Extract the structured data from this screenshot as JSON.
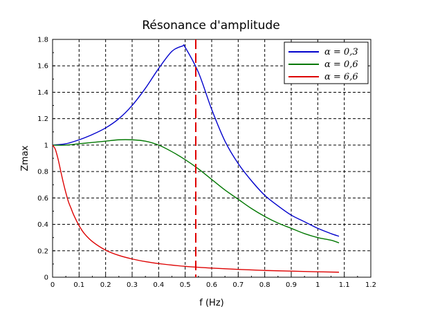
{
  "chart_data": {
    "type": "line",
    "title": "Résonance d'amplitude",
    "xlabel": "f (Hz)",
    "ylabel": "Zmax",
    "xlim": [
      0,
      1.2
    ],
    "ylim": [
      0,
      1.8
    ],
    "x_ticks": [
      "0",
      "0.1",
      "0.2",
      "0.3",
      "0.4",
      "0.5",
      "0.6",
      "0.7",
      "0.8",
      "0.9",
      "1",
      "1.1",
      "1.2"
    ],
    "y_ticks": [
      "0",
      "0.2",
      "0.4",
      "0.6",
      "0.8",
      "1",
      "1.2",
      "1.4",
      "1.6",
      "1.8"
    ],
    "grid": true,
    "legend_position": "top-right",
    "vertical_marker": {
      "x": 0.54,
      "color": "#e00000",
      "style": "dashed"
    },
    "series": [
      {
        "name": "α = 0,3",
        "color": "#0000cc",
        "x": [
          0,
          0.05,
          0.1,
          0.15,
          0.2,
          0.25,
          0.3,
          0.35,
          0.4,
          0.45,
          0.49,
          0.5,
          0.55,
          0.6,
          0.65,
          0.7,
          0.75,
          0.8,
          0.85,
          0.9,
          0.95,
          1.0,
          1.05,
          1.08
        ],
        "y": [
          1.0,
          1.01,
          1.04,
          1.08,
          1.13,
          1.2,
          1.3,
          1.43,
          1.58,
          1.71,
          1.75,
          1.74,
          1.55,
          1.27,
          1.03,
          0.86,
          0.73,
          0.62,
          0.54,
          0.47,
          0.42,
          0.37,
          0.33,
          0.31
        ]
      },
      {
        "name": "α = 0,6",
        "color": "#007700",
        "x": [
          0,
          0.05,
          0.1,
          0.15,
          0.2,
          0.25,
          0.3,
          0.35,
          0.4,
          0.45,
          0.5,
          0.55,
          0.6,
          0.65,
          0.7,
          0.75,
          0.8,
          0.85,
          0.9,
          0.95,
          1.0,
          1.05,
          1.08
        ],
        "y": [
          1.0,
          1.0,
          1.01,
          1.02,
          1.03,
          1.04,
          1.04,
          1.03,
          1.0,
          0.95,
          0.89,
          0.82,
          0.74,
          0.66,
          0.59,
          0.52,
          0.46,
          0.41,
          0.37,
          0.33,
          0.3,
          0.28,
          0.26
        ]
      },
      {
        "name": "α = 6,6",
        "color": "#dd0000",
        "x": [
          0,
          0.01,
          0.02,
          0.03,
          0.04,
          0.05,
          0.06,
          0.07,
          0.08,
          0.1,
          0.12,
          0.15,
          0.2,
          0.25,
          0.3,
          0.35,
          0.4,
          0.5,
          0.6,
          0.7,
          0.8,
          0.9,
          1.0,
          1.08
        ],
        "y": [
          1.0,
          0.97,
          0.9,
          0.81,
          0.72,
          0.64,
          0.57,
          0.52,
          0.47,
          0.39,
          0.33,
          0.27,
          0.205,
          0.165,
          0.138,
          0.118,
          0.103,
          0.082,
          0.069,
          0.059,
          0.051,
          0.046,
          0.041,
          0.038
        ]
      }
    ]
  }
}
